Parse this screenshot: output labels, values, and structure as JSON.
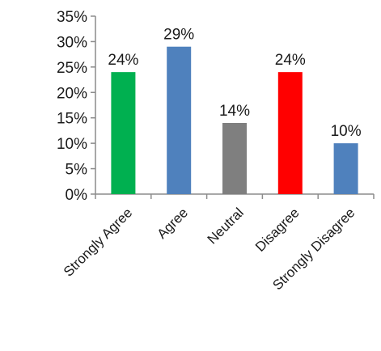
{
  "chart_data": {
    "type": "bar",
    "categories": [
      "Strongly Agree",
      "Agree",
      "Neutral",
      "Disagree",
      "Strongly Disagree"
    ],
    "values": [
      24,
      29,
      14,
      24,
      10
    ],
    "data_labels": [
      "24%",
      "29%",
      "14%",
      "24%",
      "10%"
    ],
    "bar_colors": [
      "#00b050",
      "#4f81bd",
      "#7f7f7f",
      "#ff0000",
      "#4f81bd"
    ],
    "ylim": [
      0,
      35
    ],
    "yticks": [
      0,
      5,
      10,
      15,
      20,
      25,
      30,
      35
    ],
    "ytick_labels": [
      "0%",
      "5%",
      "10%",
      "15%",
      "20%",
      "25%",
      "30%",
      "35%"
    ],
    "title": "",
    "xlabel": "",
    "ylabel": "",
    "grid": false,
    "legend": "none"
  }
}
